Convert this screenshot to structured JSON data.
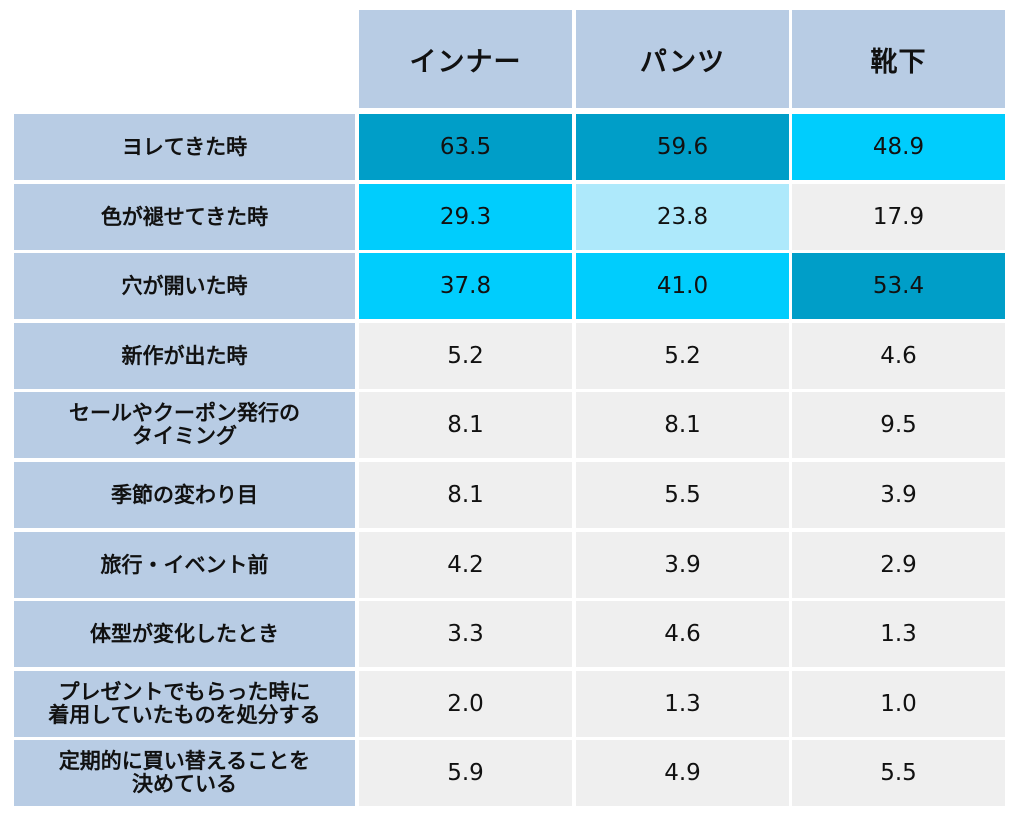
{
  "chart_data": {
    "type": "table",
    "columns": [
      "インナー",
      "パンツ",
      "靴下"
    ],
    "rows": [
      "ヨレてきた時",
      "色が褪せてきた時",
      "穴が開いた時",
      "新作が出た時",
      "セールやクーポン発行の\nタイミング",
      "季節の変わり目",
      "旅行・イベント前",
      "体型が変化したとき",
      "プレゼントでもらった時に\n着用していたものを処分する",
      "定期的に買い替えることを\n決めている"
    ],
    "values": [
      [
        "63.5",
        "59.6",
        "48.9"
      ],
      [
        "29.3",
        "23.8",
        "17.9"
      ],
      [
        "37.8",
        "41.0",
        "53.4"
      ],
      [
        "5.2",
        "5.2",
        "4.6"
      ],
      [
        "8.1",
        "8.1",
        "9.5"
      ],
      [
        "8.1",
        "5.5",
        "3.9"
      ],
      [
        "4.2",
        "3.9",
        "2.9"
      ],
      [
        "3.3",
        "4.6",
        "1.3"
      ],
      [
        "2.0",
        "1.3",
        "1.0"
      ],
      [
        "5.9",
        "4.9",
        "5.5"
      ]
    ],
    "highlight_levels": [
      [
        3,
        3,
        2
      ],
      [
        2,
        1,
        0
      ],
      [
        2,
        2,
        3
      ],
      [
        0,
        0,
        0
      ],
      [
        0,
        0,
        0
      ],
      [
        0,
        0,
        0
      ],
      [
        0,
        0,
        0
      ],
      [
        0,
        0,
        0
      ],
      [
        0,
        0,
        0
      ],
      [
        0,
        0,
        0
      ]
    ],
    "colors": {
      "header_bg": "#b8cce4",
      "level_0": "#efefef",
      "level_1": "#aee9fb",
      "level_2": "#00cdfd",
      "level_3": "#009ec8"
    }
  }
}
